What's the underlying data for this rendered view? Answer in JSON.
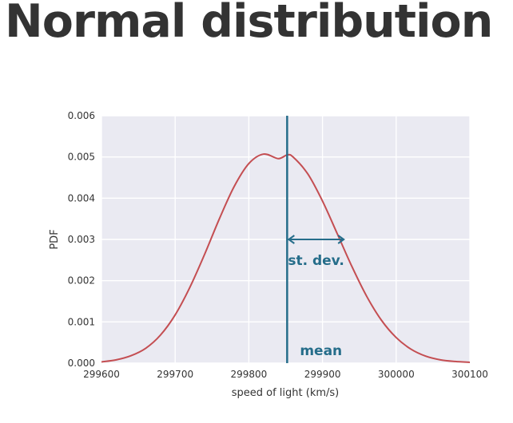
{
  "title": "Normal distribution",
  "chart_data": {
    "type": "line",
    "title": "",
    "xlabel": "speed of light (km/s)",
    "ylabel": "PDF",
    "xlim": [
      299600,
      300100
    ],
    "ylim": [
      0,
      0.006
    ],
    "x_ticks": [
      299600,
      299700,
      299800,
      299900,
      300000,
      300100
    ],
    "x_tick_labels": [
      "299600",
      "299700",
      "299800",
      "299900",
      "300000",
      "300100"
    ],
    "y_ticks": [
      0,
      0.001,
      0.002,
      0.003,
      0.004,
      0.005,
      0.006
    ],
    "y_tick_labels": [
      "0.000",
      "0.001",
      "0.002",
      "0.003",
      "0.004",
      "0.005",
      "0.006"
    ],
    "grid": true,
    "series": [
      {
        "color": "#c44e52",
        "x": [
          299600,
          299620,
          299640,
          299660,
          299680,
          299700,
          299720,
          299740,
          299760,
          299780,
          299800,
          299820,
          299840,
          299852,
          299860,
          299880,
          299900,
          299920,
          299940,
          299960,
          299980,
          300000,
          300020,
          300040,
          300060,
          300080,
          300100
        ],
        "y": [
          3e-05,
          8e-05,
          0.00018,
          0.00036,
          0.00068,
          0.00117,
          0.00184,
          0.00264,
          0.0035,
          0.00428,
          0.00484,
          0.00507,
          0.00496,
          0.00505,
          0.005,
          0.00459,
          0.00393,
          0.00314,
          0.00234,
          0.00162,
          0.00104,
          0.00062,
          0.00034,
          0.00017,
          8e-05,
          4e-05,
          2e-05
        ]
      }
    ],
    "annotations": {
      "mean": {
        "value": 299852,
        "label": "mean",
        "color": "#256d8a"
      },
      "std_dev": {
        "from": 299852,
        "to": 299931,
        "y": 0.003,
        "label": "st. dev.",
        "color": "#256d8a"
      }
    }
  }
}
